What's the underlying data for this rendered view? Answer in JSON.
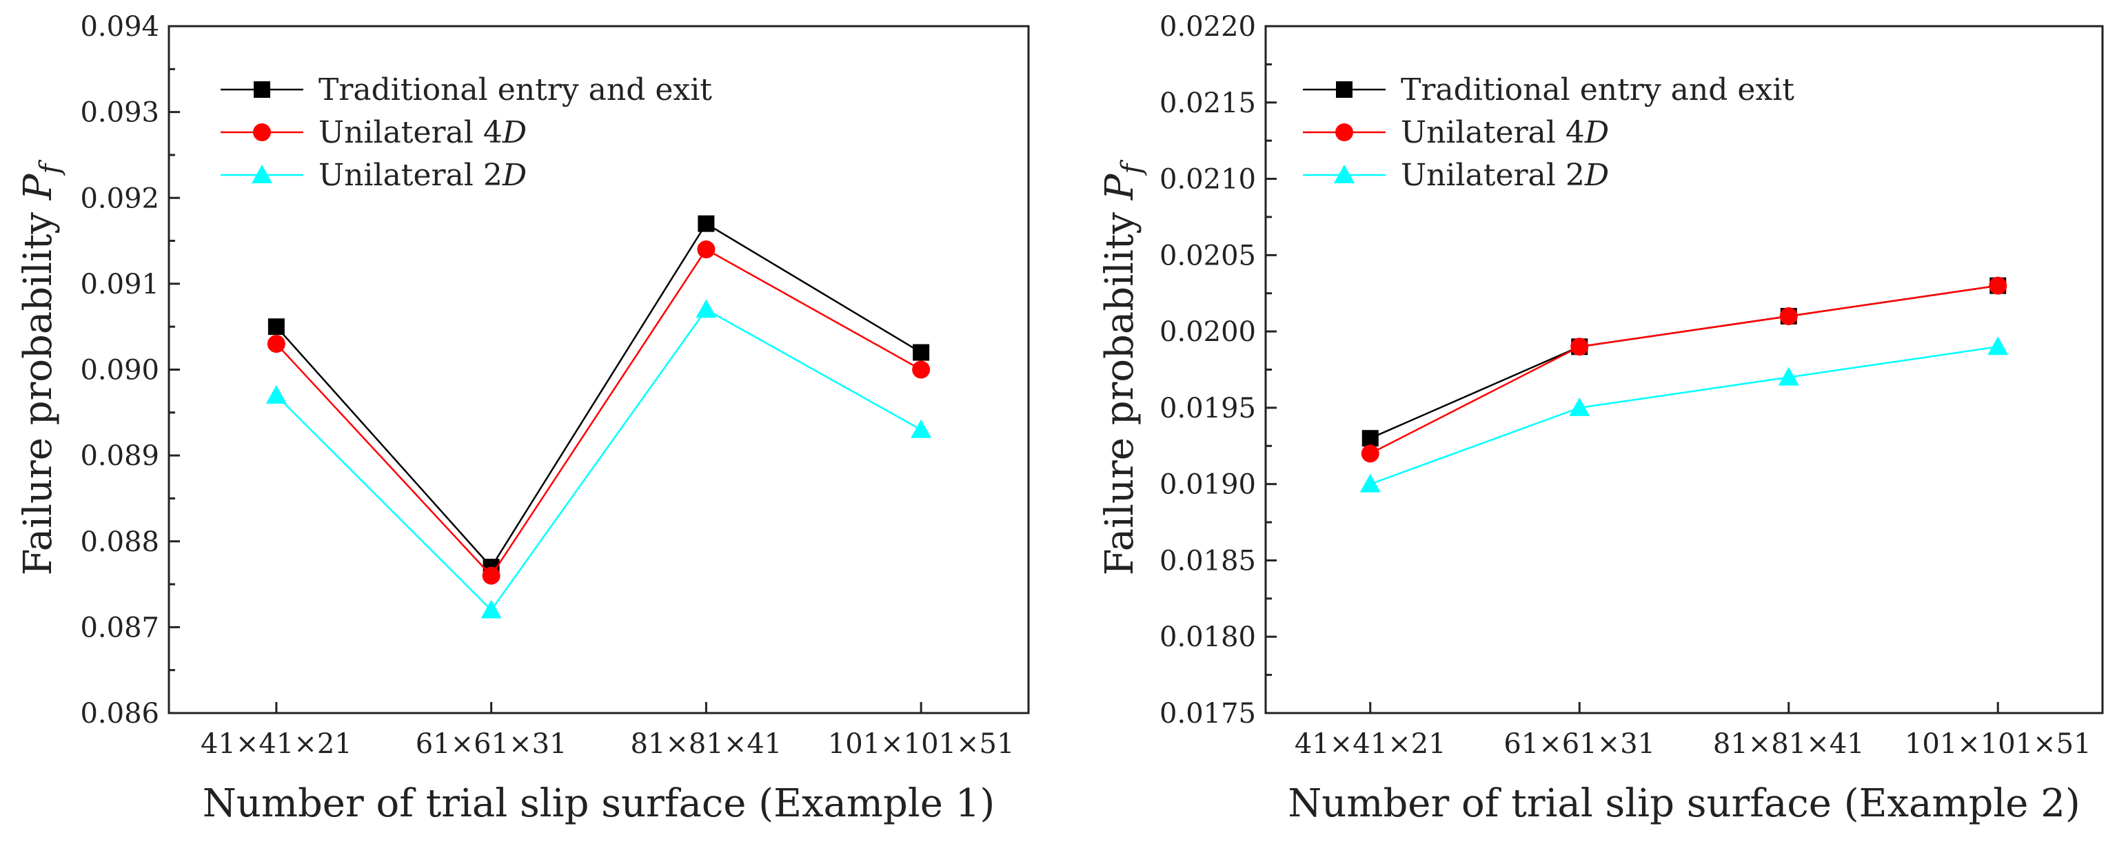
{
  "chart_data": [
    {
      "type": "line",
      "title": "",
      "xlabel": "Number of trial slip surface (Example 1)",
      "ylabel": {
        "text": "Failure probability ",
        "symbol": "P",
        "subscript": "f"
      },
      "categories": [
        "41×41×21",
        "61×61×31",
        "81×81×41",
        "101×101×51"
      ],
      "ylim": [
        0.086,
        0.094
      ],
      "yticks": [
        "0.086",
        "0.087",
        "0.088",
        "0.089",
        "0.090",
        "0.091",
        "0.092",
        "0.093",
        "0.094"
      ],
      "grid": false,
      "legend_position": "top-left",
      "series": [
        {
          "name": "Traditional entry and exit",
          "label_parts": [
            "Traditional entry and exit",
            ""
          ],
          "marker": "square",
          "color": "#000000",
          "values": [
            0.0905,
            0.0877,
            0.0917,
            0.0902
          ]
        },
        {
          "name": "Unilateral 4D",
          "label_parts": [
            "Unilateral 4",
            "D"
          ],
          "marker": "circle",
          "color": "#ff0000",
          "values": [
            0.0903,
            0.0876,
            0.0914,
            0.09
          ]
        },
        {
          "name": "Unilateral 2D",
          "label_parts": [
            "Unilateral 2",
            "D"
          ],
          "marker": "triangle",
          "color": "#00ffff",
          "values": [
            0.0897,
            0.0872,
            0.0907,
            0.0893
          ]
        }
      ]
    },
    {
      "type": "line",
      "title": "",
      "xlabel": "Number of trial slip surface (Example 2)",
      "ylabel": {
        "text": "Failure probability ",
        "symbol": "P",
        "subscript": "f"
      },
      "categories": [
        "41×41×21",
        "61×61×31",
        "81×81×41",
        "101×101×51"
      ],
      "ylim": [
        0.0175,
        0.022
      ],
      "yticks": [
        "0.0175",
        "0.0180",
        "0.0185",
        "0.0190",
        "0.0195",
        "0.0200",
        "0.0205",
        "0.0210",
        "0.0215",
        "0.0220"
      ],
      "grid": false,
      "legend_position": "top-left",
      "series": [
        {
          "name": "Traditional entry and exit",
          "label_parts": [
            "Traditional entry and exit",
            ""
          ],
          "marker": "square",
          "color": "#000000",
          "values": [
            0.0193,
            0.0199,
            0.0201,
            0.0203
          ]
        },
        {
          "name": "Unilateral 4D",
          "label_parts": [
            "Unilateral 4",
            "D"
          ],
          "marker": "circle",
          "color": "#ff0000",
          "values": [
            0.0192,
            0.0199,
            0.0201,
            0.0203
          ]
        },
        {
          "name": "Unilateral 2D",
          "label_parts": [
            "Unilateral 2",
            "D"
          ],
          "marker": "triangle",
          "color": "#00ffff",
          "values": [
            0.019,
            0.0195,
            0.0197,
            0.0199
          ]
        }
      ]
    }
  ]
}
